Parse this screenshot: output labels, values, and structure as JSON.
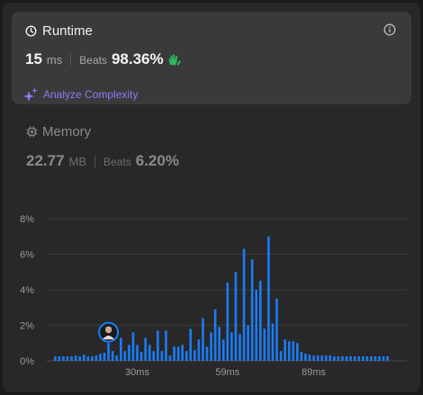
{
  "runtime": {
    "title": "Runtime",
    "value": "15",
    "unit": "ms",
    "beats_label": "Beats",
    "beats_value": "98.36%",
    "analyze_label": "Analyze Complexity"
  },
  "memory": {
    "title": "Memory",
    "value": "22.77",
    "unit": "MB",
    "beats_label": "Beats",
    "beats_value": "6.20%"
  },
  "colors": {
    "bar": "#1a7cf5",
    "accent_green": "#2cbb5d",
    "accent_purple": "#8b7cf6"
  },
  "icons": [
    "clock-icon",
    "info-icon",
    "clap-icon",
    "sparkle-icon",
    "chip-icon",
    "avatar"
  ],
  "chart_data": {
    "type": "bar",
    "y_ticks": [
      "0%",
      "2%",
      "4%",
      "6%",
      "8%"
    ],
    "x_tick_labels": [
      "30ms",
      "59ms",
      "89ms"
    ],
    "ylim": [
      0,
      8
    ],
    "grid": true,
    "highlighted_index": 13,
    "values": [
      0.25,
      0.25,
      0.25,
      0.25,
      0.25,
      0.3,
      0.25,
      0.35,
      0.25,
      0.25,
      0.3,
      0.4,
      0.45,
      1.0,
      0.55,
      0.3,
      1.3,
      0.55,
      0.9,
      1.6,
      0.9,
      0.5,
      1.3,
      0.9,
      0.55,
      1.7,
      0.55,
      1.7,
      0.3,
      0.8,
      0.8,
      0.9,
      0.55,
      1.8,
      0.6,
      1.2,
      2.4,
      0.8,
      1.6,
      2.9,
      1.9,
      1.2,
      4.4,
      1.6,
      5.0,
      1.5,
      6.3,
      2.0,
      5.7,
      4.0,
      4.5,
      1.8,
      7.0,
      2.1,
      3.5,
      0.55,
      1.2,
      1.1,
      1.1,
      1.0,
      0.5,
      0.4,
      0.35,
      0.3,
      0.3,
      0.3,
      0.3,
      0.3,
      0.25,
      0.25,
      0.25,
      0.25,
      0.25,
      0.25,
      0.25,
      0.25,
      0.25,
      0.25,
      0.25,
      0.25,
      0.25,
      0.25
    ]
  }
}
